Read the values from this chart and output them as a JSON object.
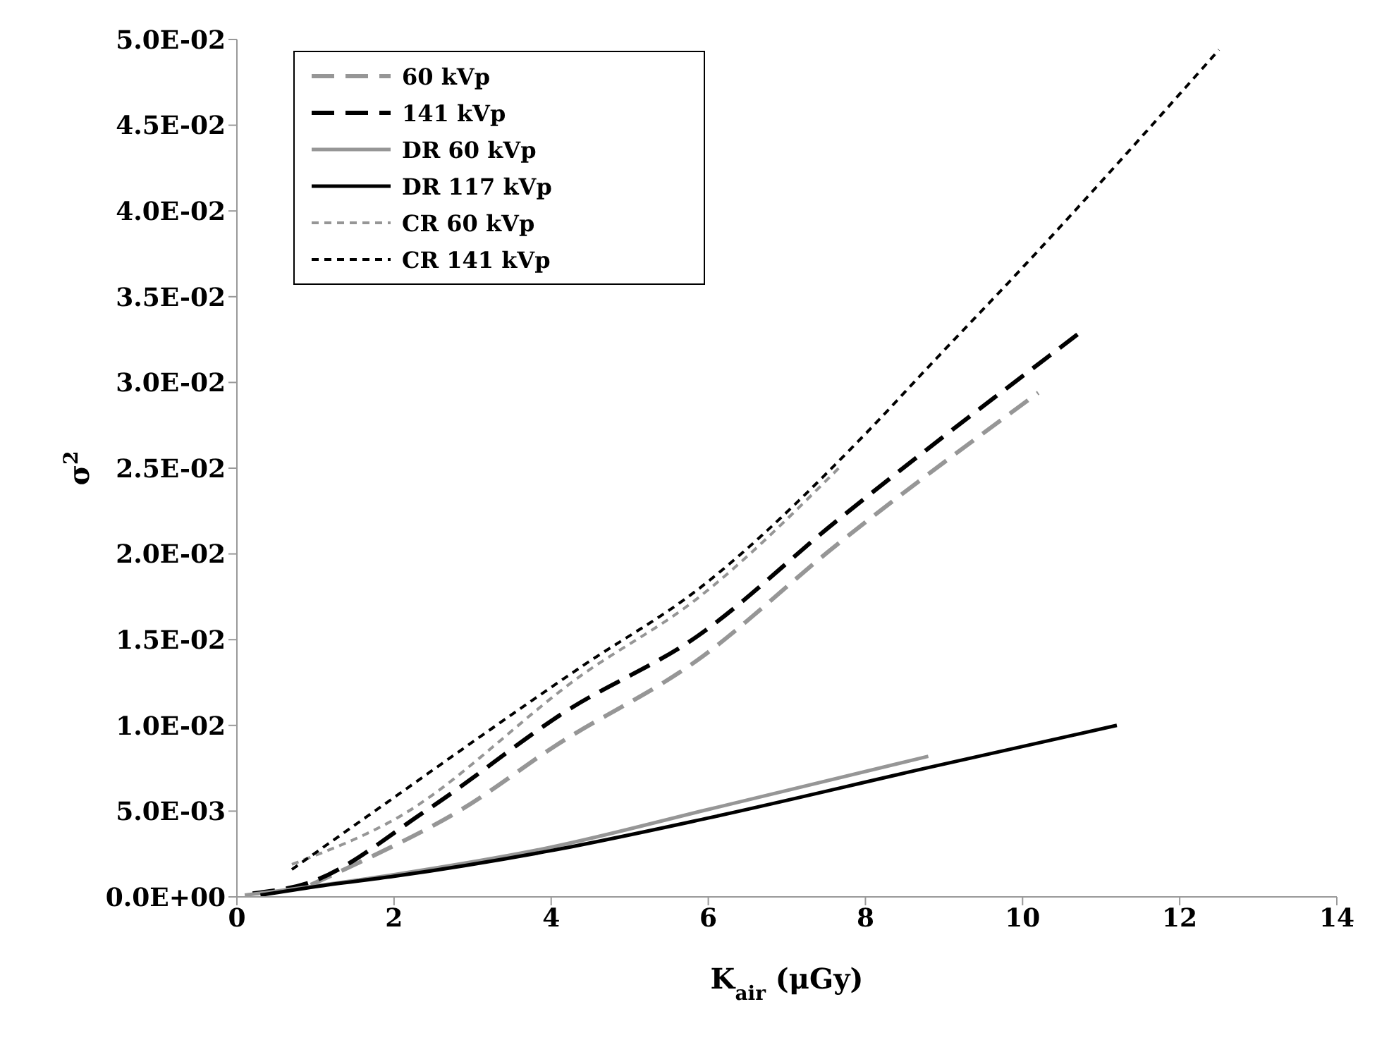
{
  "chart_data": {
    "type": "line",
    "xlabel": "K$_{air}$ (μGy)",
    "ylabel": "σ$^{2}$",
    "xlim": [
      0,
      14
    ],
    "xticks": [
      0,
      2,
      4,
      6,
      8,
      10,
      12,
      14
    ],
    "ylim": [
      0,
      0.05
    ],
    "yticks": [
      {
        "value": 0,
        "label": "0.0E+00"
      },
      {
        "value": 0.005,
        "label": "5.0E-03"
      },
      {
        "value": 0.01,
        "label": "1.0E-02"
      },
      {
        "value": 0.015,
        "label": "1.5E-02"
      },
      {
        "value": 0.02,
        "label": "2.0E-02"
      },
      {
        "value": 0.025,
        "label": "2.5E-02"
      },
      {
        "value": 0.03,
        "label": "3.0E-02"
      },
      {
        "value": 0.035,
        "label": "3.5E-02"
      },
      {
        "value": 0.04,
        "label": "4.0E-02"
      },
      {
        "value": 0.045,
        "label": "4.5E-02"
      },
      {
        "value": 0.05,
        "label": "5.0E-02"
      }
    ],
    "grid": false,
    "legend": "top left",
    "marker": "none",
    "series": [
      {
        "name": "60 kVp",
        "color": "#969696",
        "line_style": "dashed",
        "x": [
          0.94,
          1.6,
          2.86,
          4.05,
          5.86,
          7.6,
          10.2
        ],
        "values": [
          0.0007,
          0.0021,
          0.0051,
          0.0088,
          0.0138,
          0.0204,
          0.0294
        ]
      },
      {
        "name": "141 kVp",
        "color": "#000000",
        "line_style": "dashed",
        "x": [
          0.2,
          0.9,
          2.43,
          4.18,
          5.86,
          7.6,
          10.7
        ],
        "values": [
          0.0002,
          0.0008,
          0.0051,
          0.0108,
          0.0152,
          0.0218,
          0.0328
        ]
      },
      {
        "name": "DR 60 kVp",
        "color": "#969696",
        "line_style": "solid",
        "x": [
          0.1,
          2,
          4,
          6,
          8.8
        ],
        "values": [
          0.0001,
          0.0013,
          0.0029,
          0.0051,
          0.0082
        ]
      },
      {
        "name": "DR 117 kVp",
        "color": "#000000",
        "line_style": "solid",
        "x": [
          0.3,
          1,
          2,
          4,
          6,
          8.86,
          11.2
        ],
        "values": [
          0.0001,
          0.0006,
          0.0012,
          0.0027,
          0.0046,
          0.0076,
          0.01
        ]
      },
      {
        "name": "CR 60 kVp",
        "color": "#969696",
        "line_style": "dotted",
        "x": [
          0.7,
          2,
          4.41,
          5.86,
          7.66
        ],
        "values": [
          0.0019,
          0.0045,
          0.013,
          0.0174,
          0.025
        ]
      },
      {
        "name": "CR 141 kVp",
        "color": "#000000",
        "line_style": "dotted",
        "x": [
          0.7,
          1.66,
          4.41,
          5.86,
          8,
          8.8,
          10,
          12.5
        ],
        "values": [
          0.0016,
          0.0047,
          0.0135,
          0.0179,
          0.027,
          0.0309,
          0.0367,
          0.0494
        ]
      }
    ]
  }
}
